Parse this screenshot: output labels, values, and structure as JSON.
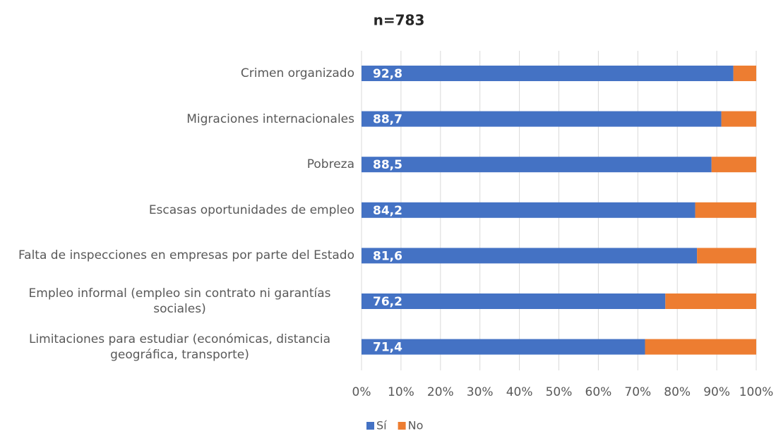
{
  "chart_data": {
    "type": "bar",
    "orientation": "horizontal",
    "stacked": "percent",
    "title": "n=783",
    "categories": [
      "Crimen organizado",
      "Migraciones internacionales",
      "Pobreza",
      "Escasas oportunidades de empleo",
      "Falta de inspecciones en empresas por parte del Estado",
      "Empleo informal (empleo sin contrato ni garantías sociales)",
      "Limitaciones para estudiar (económicas, distancia geográfica, transporte)"
    ],
    "series": [
      {
        "name": "Sí",
        "color": "#4472c4",
        "values": [
          92.8,
          88.7,
          88.5,
          84.2,
          81.6,
          76.2,
          71.4
        ],
        "value_labels": [
          "92,8",
          "88,7",
          "88,5",
          "84,2",
          "81,6",
          "76,2",
          "71,4"
        ]
      },
      {
        "name": "No",
        "color": "#ed7d31",
        "values": [
          5.7,
          8.6,
          11.3,
          15.4,
          14.4,
          22.8,
          28.0
        ]
      }
    ],
    "xlim": [
      0,
      100
    ],
    "xticks": [
      {
        "value": 0,
        "label": "0%"
      },
      {
        "value": 10,
        "label": "10%"
      },
      {
        "value": 20,
        "label": "20%"
      },
      {
        "value": 30,
        "label": "30%"
      },
      {
        "value": 40,
        "label": "40%"
      },
      {
        "value": 50,
        "label": "50%"
      },
      {
        "value": 60,
        "label": "60%"
      },
      {
        "value": 70,
        "label": "70%"
      },
      {
        "value": 80,
        "label": "80%"
      },
      {
        "value": 90,
        "label": "90%"
      },
      {
        "value": 100,
        "label": "100%"
      }
    ],
    "grid": true,
    "legend": "bottom"
  }
}
